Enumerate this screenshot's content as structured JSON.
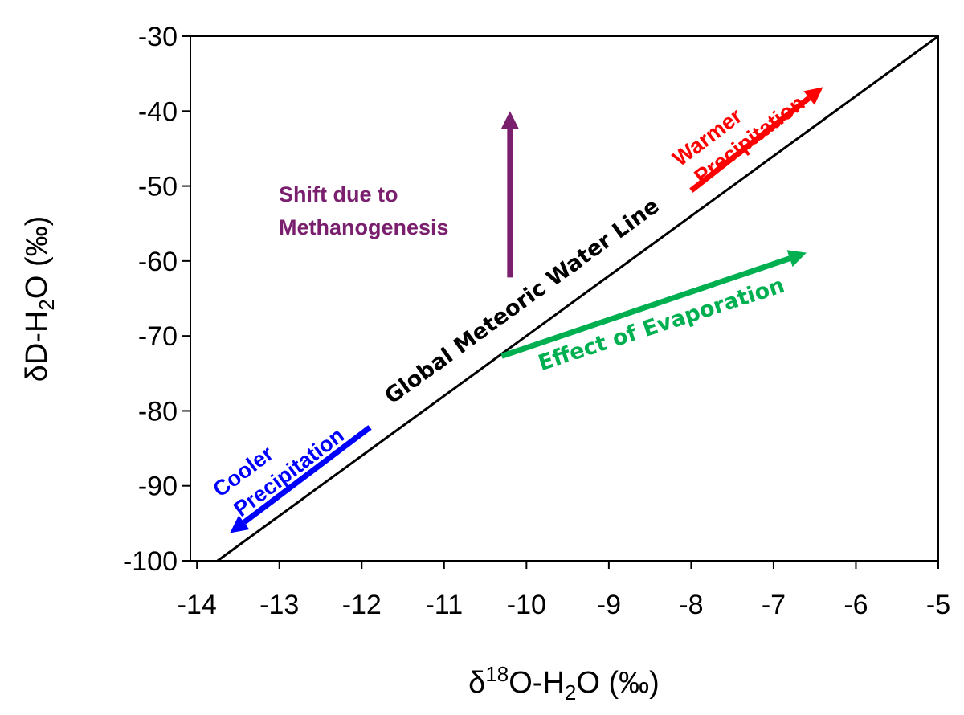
{
  "chart_data": {
    "type": "line",
    "xlabel": {
      "prefix": "δ",
      "sup": "18",
      "main": "O-H",
      "sub": "2",
      "suffix": "O (‰)"
    },
    "ylabel": {
      "prefix": "δD-H",
      "sub": "2",
      "suffix": "O (‰)"
    },
    "xlim": [
      -14.08,
      -5
    ],
    "ylim": [
      -100,
      -30
    ],
    "xticks": [
      -14,
      -13,
      -12,
      -11,
      -10,
      -9,
      -8,
      -7,
      -6,
      -5
    ],
    "yticks": [
      -100,
      -90,
      -80,
      -70,
      -60,
      -50,
      -40,
      -30
    ],
    "grid": false,
    "series": [
      {
        "name": "Global Meteoric Water Line",
        "x": [
          -13.75,
          -5
        ],
        "y": [
          -100,
          -30
        ],
        "color": "#000000"
      }
    ],
    "arrows": [
      {
        "label": [
          "Warmer",
          "Precipitation"
        ],
        "from": [
          -8.0,
          -50.6
        ],
        "to": [
          -6.4,
          -36.8
        ],
        "color": "#ff0000"
      },
      {
        "label": [
          "Cooler",
          "Precipitation"
        ],
        "from": [
          -11.9,
          -82.2
        ],
        "to": [
          -13.6,
          -96.3
        ],
        "color": "#0000ff"
      },
      {
        "label": [
          "Effect of Evaporation"
        ],
        "from": [
          -10.3,
          -72.7
        ],
        "to": [
          -6.6,
          -58.9
        ],
        "color": "#00b050"
      },
      {
        "label": [
          "Shift due to",
          "Methanogenesis"
        ],
        "from": [
          -10.2,
          -62.2
        ],
        "to": [
          -10.2,
          -40.0
        ],
        "color": "#7a1f6e"
      }
    ]
  }
}
